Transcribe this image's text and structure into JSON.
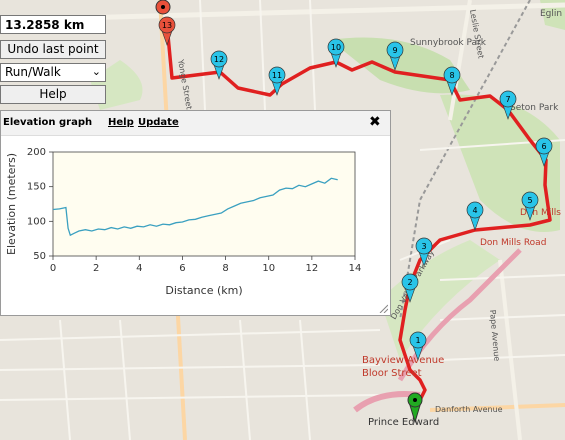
{
  "controls": {
    "distance": "13.2858 km",
    "undo_label": "Undo last point",
    "mode_value": "Run/Walk",
    "help_label": "Help"
  },
  "map": {
    "street_labels": [
      {
        "text": "Bayview Avenue",
        "color": "#c0392b"
      },
      {
        "text": "Bloor Street",
        "color": "#c0392b"
      },
      {
        "text": "Don Mills Road",
        "color": "#c0392b"
      },
      {
        "text": "Don Mills",
        "color": "#c0392b"
      },
      {
        "text": "Sunnybrook Park",
        "color": "#555555"
      },
      {
        "text": "Seton Park",
        "color": "#555555"
      },
      {
        "text": "Danforth Avenue",
        "color": "#555555"
      },
      {
        "text": "Pape Avenue",
        "color": "#555555"
      },
      {
        "text": "Prince Edward",
        "color": "#333333"
      },
      {
        "text": "Don Valley Parkway",
        "color": "#555555"
      },
      {
        "text": "Leslie Street",
        "color": "#555555"
      },
      {
        "text": "Yonge Street",
        "color": "#555555"
      },
      {
        "text": "Eglin",
        "color": "#555555"
      }
    ],
    "markers": [
      "1",
      "2",
      "3",
      "4",
      "5",
      "6",
      "7",
      "8",
      "9",
      "10",
      "11",
      "12",
      "13"
    ],
    "route_color": "#e02020",
    "marker_color": "#29c4e8",
    "end_marker_color": "#e8503a",
    "start_marker_color": "#22aa22"
  },
  "elevation": {
    "title": "Elevation graph",
    "help_link": "Help",
    "update_link": "Update",
    "close_icon": "close-icon"
  },
  "chart_data": {
    "type": "line",
    "xlabel": "Distance (km)",
    "ylabel": "Elevation (meters)",
    "xlim": [
      0,
      14
    ],
    "ylim": [
      50,
      200
    ],
    "xticks": [
      0,
      2,
      4,
      6,
      8,
      10,
      12,
      14
    ],
    "yticks": [
      50,
      100,
      150,
      200
    ],
    "grid": false,
    "line_color": "#3aa0c0",
    "plot_bg": "#fffdf0",
    "x": [
      0,
      0.3,
      0.6,
      0.7,
      0.8,
      1.0,
      1.2,
      1.5,
      1.8,
      2.1,
      2.4,
      2.7,
      3.0,
      3.3,
      3.6,
      3.9,
      4.2,
      4.5,
      4.8,
      5.1,
      5.4,
      5.7,
      6.0,
      6.3,
      6.6,
      6.9,
      7.2,
      7.5,
      7.8,
      8.1,
      8.4,
      8.7,
      9.0,
      9.3,
      9.6,
      9.9,
      10.2,
      10.5,
      10.8,
      11.1,
      11.4,
      11.7,
      12.0,
      12.3,
      12.6,
      12.9,
      13.2
    ],
    "y": [
      117,
      118,
      120,
      90,
      80,
      83,
      86,
      88,
      86,
      89,
      88,
      91,
      89,
      92,
      90,
      93,
      92,
      95,
      93,
      96,
      95,
      98,
      99,
      102,
      103,
      106,
      108,
      110,
      112,
      118,
      122,
      126,
      128,
      130,
      134,
      136,
      138,
      145,
      148,
      147,
      152,
      150,
      154,
      158,
      155,
      162,
      160
    ]
  }
}
